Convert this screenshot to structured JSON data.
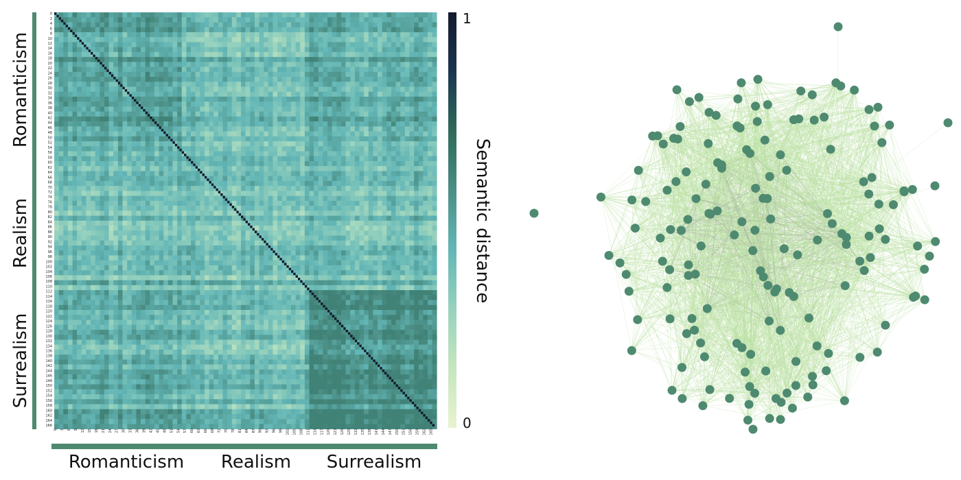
{
  "chart_data": [
    {
      "type": "heatmap",
      "title": "",
      "xlabel": "",
      "ylabel": "",
      "n": 167,
      "tick_step_x": 3,
      "tick_step_y": 2,
      "x_groups": [
        "Romanticism",
        "Realism",
        "Surrealism"
      ],
      "y_groups": [
        "Romanticism",
        "Realism",
        "Surrealism"
      ],
      "diagonal_value": 1,
      "colorbar": {
        "label": "Semantic distance",
        "min": 0,
        "max": 1,
        "min_label": "0",
        "max_label": "1",
        "colors": [
          "#e8f3cf",
          "#c6e6bf",
          "#97d2be",
          "#63b6b6",
          "#4b8f86",
          "#2e6a5a",
          "#1a3550",
          "#121a2c"
        ]
      },
      "group_bar_color": "#4e8a6f"
    },
    {
      "type": "network",
      "title": "",
      "nodes": 167,
      "node_color": "#4e8a6f",
      "edge_color_core": "#9a9a9a",
      "edge_color_periphery": "#b8e0a0",
      "outlier_nodes": 5
    }
  ]
}
